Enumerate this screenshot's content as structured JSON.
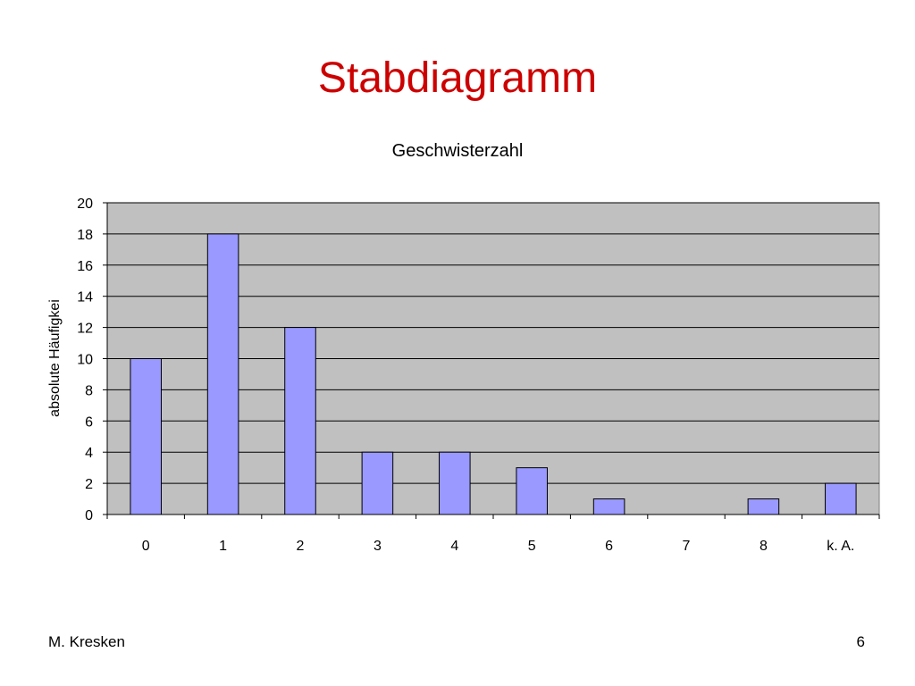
{
  "slide": {
    "title": "Stabdiagramm",
    "author": "M. Kresken",
    "page_number": "6"
  },
  "colors": {
    "title": "#cc0000",
    "plot_background": "#c0c0c0",
    "bar_fill": "#9999ff",
    "bar_stroke": "#000000",
    "gridline": "#000000"
  },
  "chart_data": {
    "type": "bar",
    "title": "Geschwisterzahl",
    "xlabel": "",
    "ylabel": "absolute Häufigkei",
    "categories": [
      "0",
      "1",
      "2",
      "3",
      "4",
      "5",
      "6",
      "7",
      "8",
      "k. A."
    ],
    "values": [
      10,
      18,
      12,
      4,
      4,
      3,
      1,
      0,
      1,
      2
    ],
    "ylim": [
      0,
      20
    ],
    "yticks": [
      0,
      2,
      4,
      6,
      8,
      10,
      12,
      14,
      16,
      18,
      20
    ],
    "grid": true,
    "legend": "none"
  }
}
